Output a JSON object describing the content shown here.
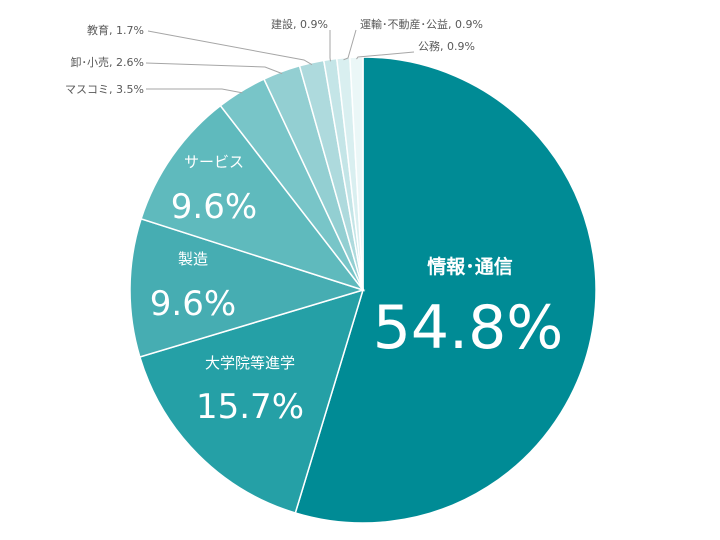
{
  "chart_data": {
    "type": "pie",
    "title": "",
    "slices": [
      {
        "name": "情報･通信",
        "value": 54.8,
        "display": "54.8%",
        "color": "#008b95"
      },
      {
        "name": "大学院等進学",
        "value": 15.7,
        "display": "15.7%",
        "color": "#25a0a6"
      },
      {
        "name": "製造",
        "value": 9.6,
        "display": "9.6%",
        "color": "#46adb2"
      },
      {
        "name": "サービス",
        "value": 9.6,
        "display": "9.6%",
        "color": "#5fbabd"
      },
      {
        "name": "マスコミ",
        "value": 3.5,
        "display": "マスコミ, 3.5%",
        "color": "#78c5c8"
      },
      {
        "name": "卸･小売",
        "value": 2.6,
        "display": "卸･小売, 2.6%",
        "color": "#93cfd2"
      },
      {
        "name": "教育",
        "value": 1.7,
        "display": "教育, 1.7%",
        "color": "#aedadd"
      },
      {
        "name": "建設",
        "value": 0.9,
        "display": "建設, 0.9%",
        "color": "#c4e5e7"
      },
      {
        "name": "運輸･不動産･公益",
        "value": 0.9,
        "display": "運輸･不動産･公益, 0.9%",
        "color": "#d9eff0"
      },
      {
        "name": "公務",
        "value": 0.9,
        "display": "公務, 0.9%",
        "color": "#ebf7f7"
      }
    ],
    "start_angle": "12 o'clock",
    "direction": "clockwise",
    "legend": "none"
  }
}
